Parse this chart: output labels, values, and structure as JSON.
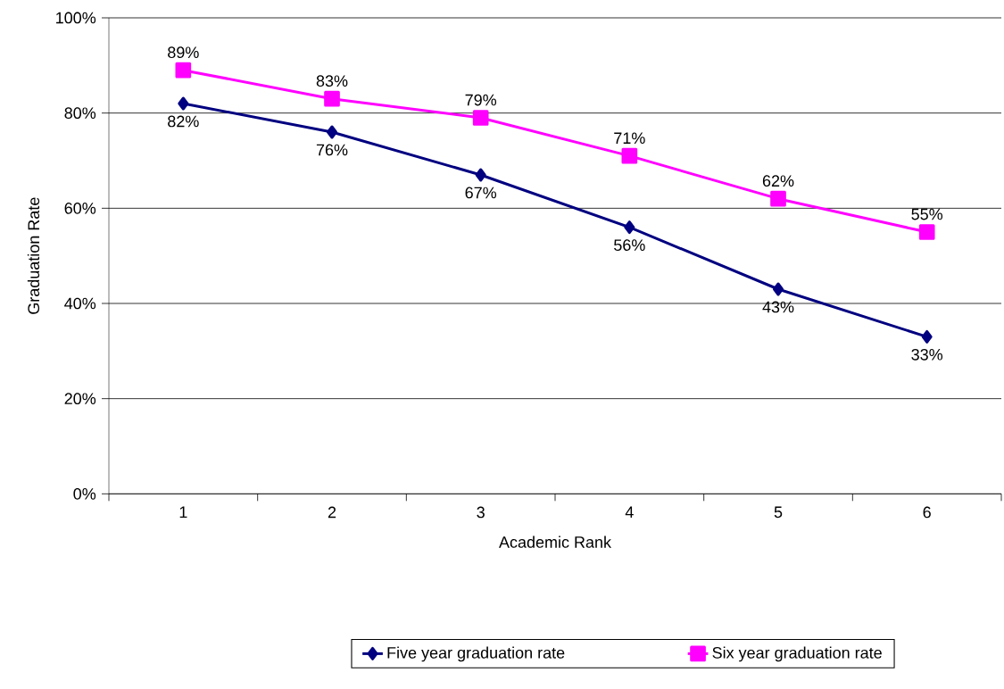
{
  "chart_data": {
    "type": "line",
    "xlabel": "Academic Rank",
    "ylabel": "Graduation Rate",
    "categories": [
      "1",
      "2",
      "3",
      "4",
      "5",
      "6"
    ],
    "series": [
      {
        "name": "Five year graduation rate",
        "color": "#000080",
        "marker": "diamond",
        "values": [
          82,
          76,
          67,
          56,
          43,
          33
        ],
        "value_labels": [
          "82%",
          "76%",
          "67%",
          "56%",
          "43%",
          "33%"
        ]
      },
      {
        "name": "Six year graduation rate",
        "color": "#ff00ff",
        "marker": "square",
        "values": [
          89,
          83,
          79,
          71,
          62,
          55
        ],
        "value_labels": [
          "89%",
          "83%",
          "79%",
          "71%",
          "62%",
          "55%"
        ]
      }
    ],
    "ylim": [
      0,
      100
    ],
    "yticks": [
      {
        "value": 0,
        "label": "0%"
      },
      {
        "value": 20,
        "label": "20%"
      },
      {
        "value": 40,
        "label": "40%"
      },
      {
        "value": 60,
        "label": "60%"
      },
      {
        "value": 80,
        "label": "80%"
      },
      {
        "value": 100,
        "label": "100%"
      }
    ],
    "grid": "y",
    "legend": "bottom",
    "line_style": "solid"
  }
}
